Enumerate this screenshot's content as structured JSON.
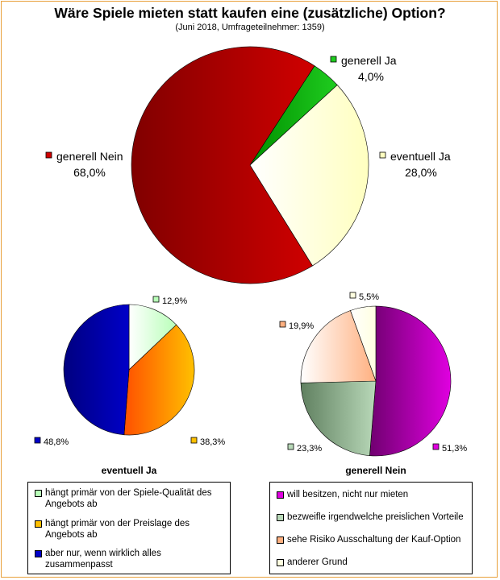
{
  "title": "Wäre Spiele mieten statt kaufen eine (zusätzliche) Option?",
  "subtitle": "(Juni 2018, Umfrageteilnehmer: 1359)",
  "chart_data": [
    {
      "type": "pie",
      "title": "",
      "labels": [
        "generell Ja",
        "eventuell Ja",
        "generell Nein"
      ],
      "values": [
        4.0,
        28.0,
        68.0
      ],
      "value_labels": [
        "4,0%",
        "28,0%",
        "68,0%"
      ],
      "colors": [
        "#1fcc1f",
        "#ffffc0",
        "#d00000"
      ]
    },
    {
      "type": "pie",
      "title": "eventuell Ja",
      "labels": [
        "hängt primär von der Spiele-Qualität des Angebots ab",
        "hängt primär von der Preislage des Angebots ab",
        "aber nur, wenn wirklich alles zusammenpasst"
      ],
      "values": [
        12.9,
        38.3,
        48.8
      ],
      "value_labels": [
        "12,9%",
        "38,3%",
        "48,8%"
      ],
      "colors": [
        "#b8ffb8",
        "#ffc000",
        "#0000c8"
      ]
    },
    {
      "type": "pie",
      "title": "generell Nein",
      "labels": [
        "will besitzen, nicht nur mieten",
        "bezweifle irgendwelche preislichen Vorteile",
        "sehe Risiko Ausschaltung der Kauf-Option",
        "anderer Grund"
      ],
      "values": [
        51.3,
        23.3,
        19.9,
        5.5
      ],
      "value_labels": [
        "51,3%",
        "23,3%",
        "19,9%",
        "5,5%"
      ],
      "colors": [
        "#e000e0",
        "#b8d8b8",
        "#ffb080",
        "#ffffe0"
      ]
    }
  ]
}
